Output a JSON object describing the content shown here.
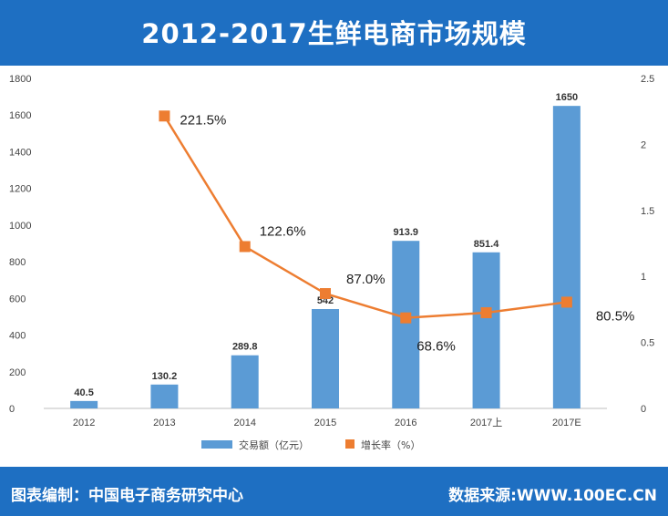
{
  "header": {
    "title": "2012-2017生鲜电商市场规模"
  },
  "footer": {
    "source_left": "图表编制：中国电子商务研究中心",
    "source_right": "数据来源:WWW.100EC.CN"
  },
  "chart_data": {
    "type": "bar",
    "categories": [
      "2012",
      "2013",
      "2014",
      "2015",
      "2016",
      "2017上",
      "2017E"
    ],
    "series": [
      {
        "name": "交易额（亿元）",
        "type": "bar",
        "axis": "left",
        "color": "#5b9bd5",
        "values": [
          40.5,
          130.2,
          289.8,
          542,
          913.9,
          851.4,
          1650
        ],
        "labels": [
          "40.5",
          "130.2",
          "289.8",
          "542",
          "913.9",
          "851.4",
          "1650"
        ]
      },
      {
        "name": "增长率（%）",
        "type": "line",
        "axis": "right",
        "color": "#ed7d31",
        "values": [
          null,
          2.215,
          1.226,
          0.87,
          0.686,
          0.725,
          0.805
        ],
        "labels": [
          "",
          "221.5%",
          "122.6%",
          "87.0%",
          "68.6%",
          "",
          "80.5%"
        ]
      }
    ],
    "y_left": {
      "min": 0,
      "max": 1800,
      "ticks": [
        "0",
        "200",
        "400",
        "600",
        "800",
        "1000",
        "1200",
        "1400",
        "1600",
        "1800"
      ]
    },
    "y_right": {
      "min": 0,
      "max": 2.5,
      "ticks": [
        "0",
        "0.5",
        "1",
        "1.5",
        "2",
        "2.5"
      ]
    },
    "legend": {
      "position": "bottom"
    },
    "grid": false
  }
}
